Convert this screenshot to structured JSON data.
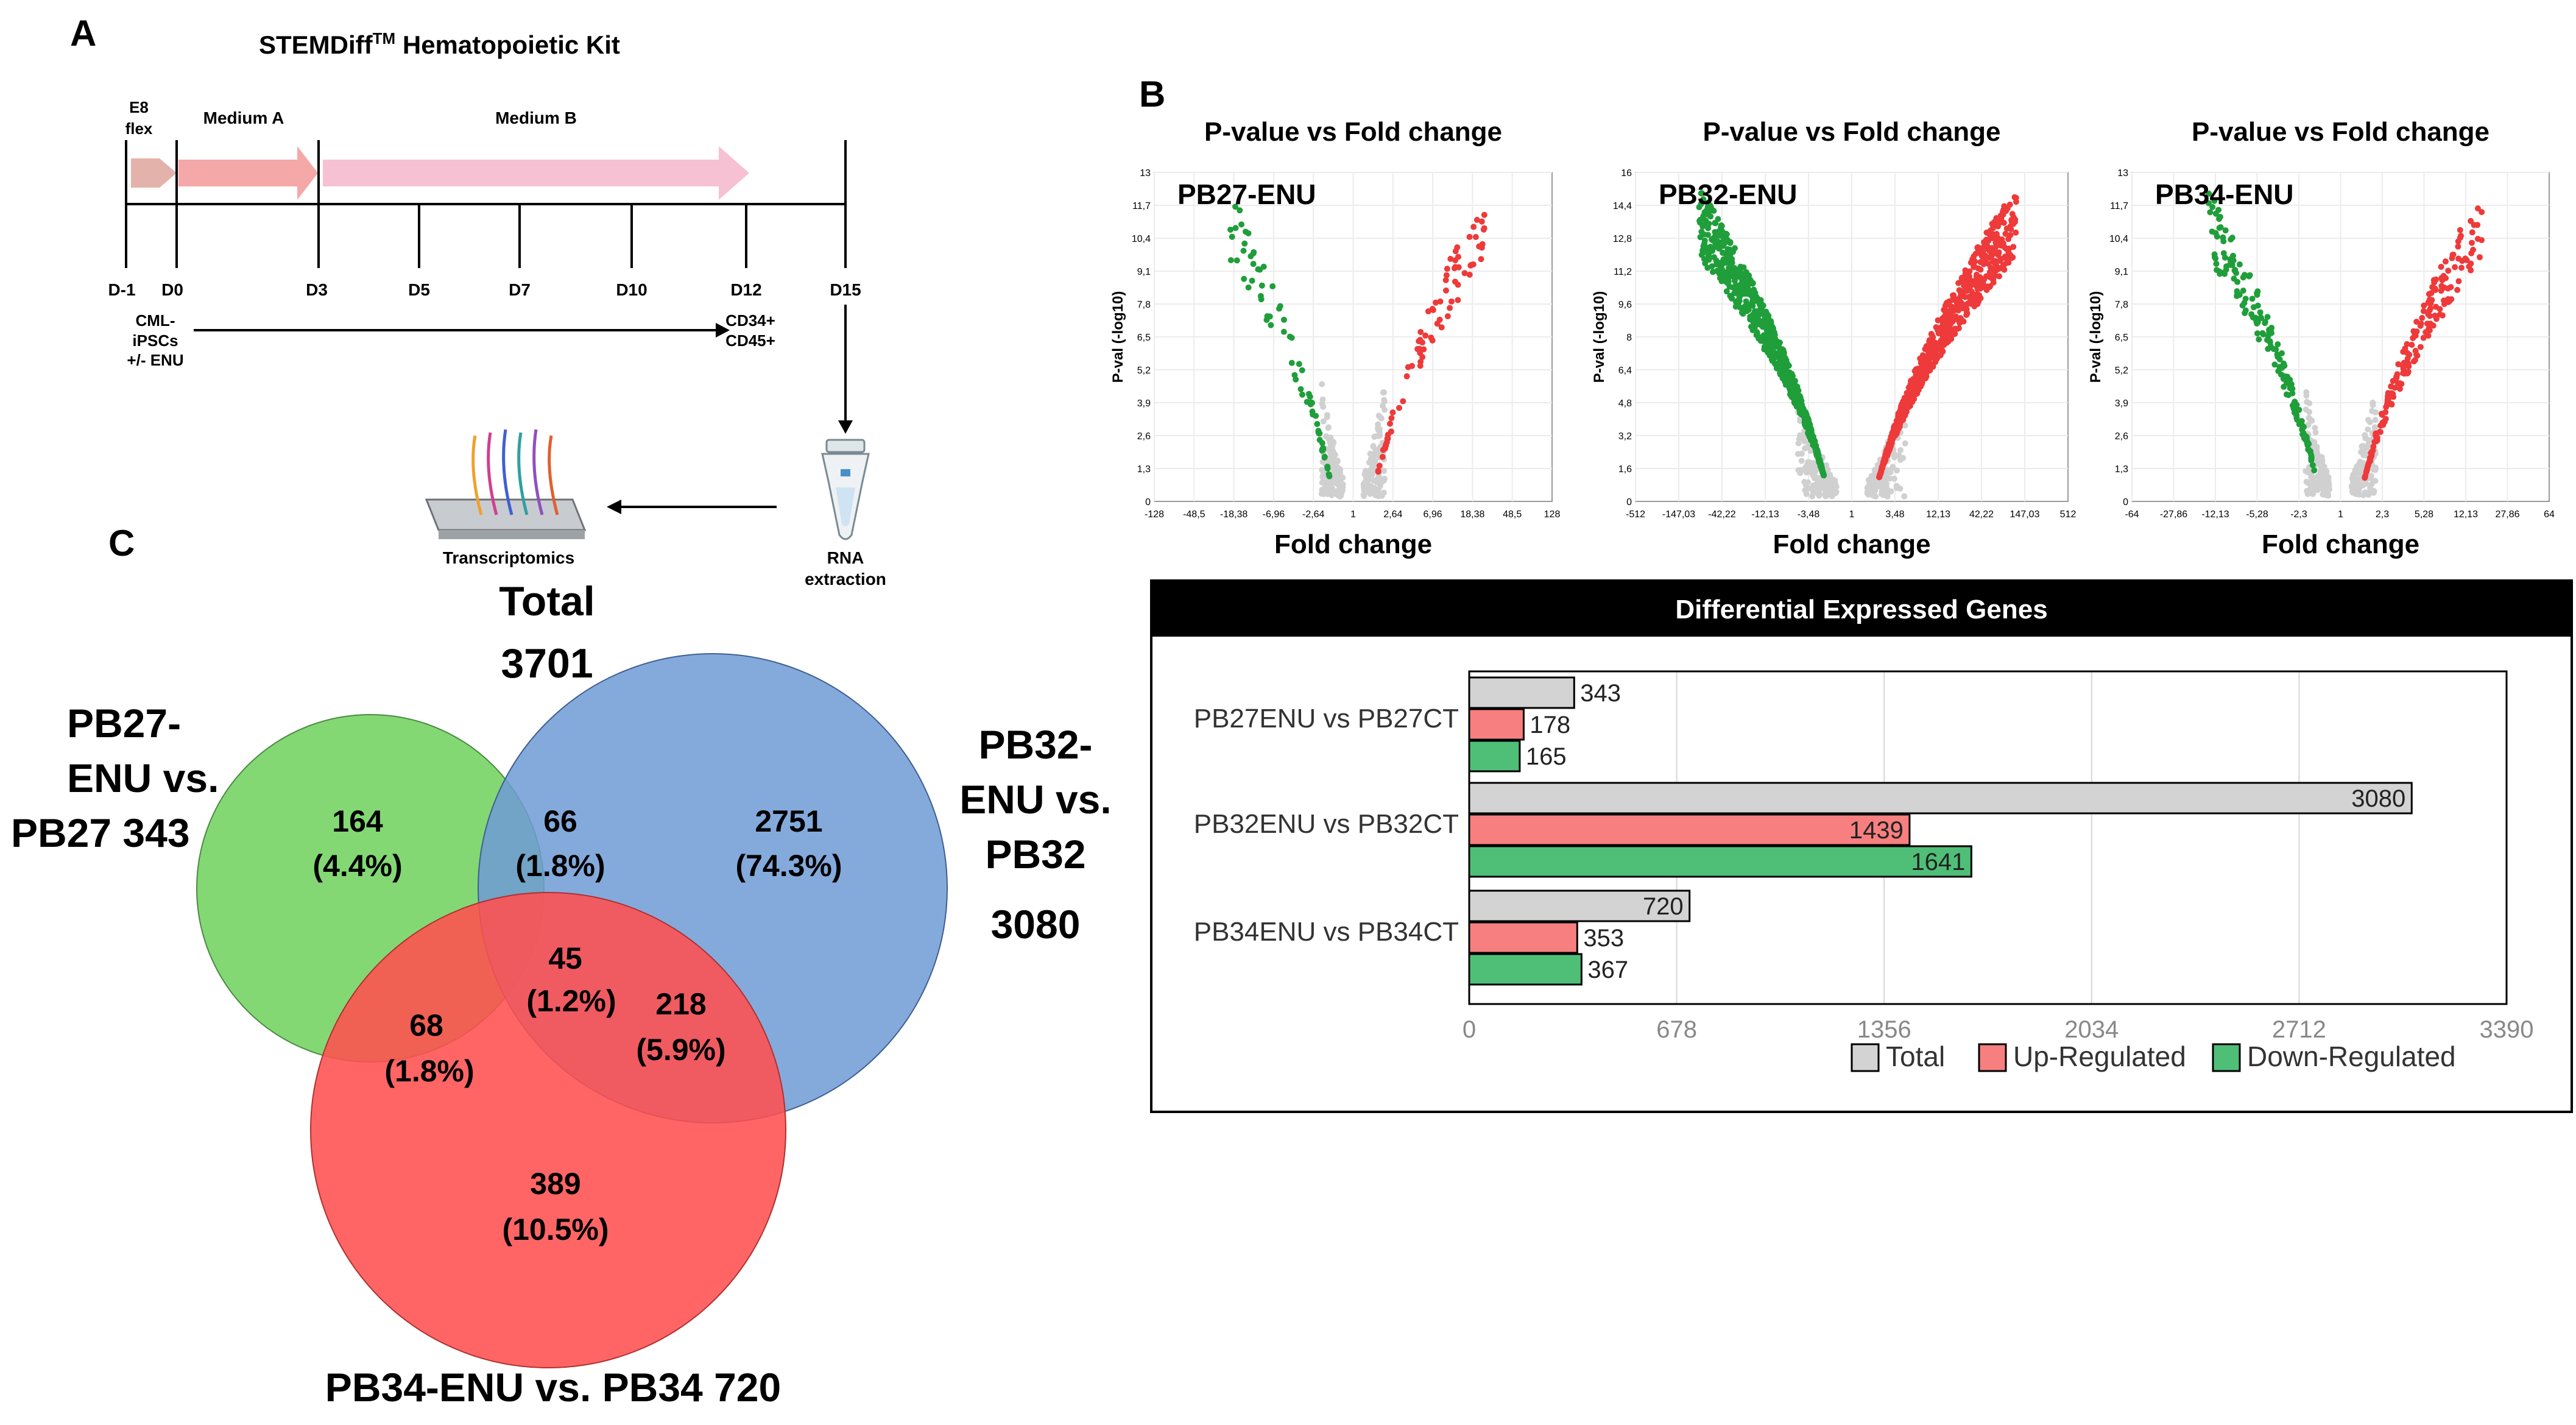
{
  "panel_a": {
    "label": "A",
    "title": "STEMDiff",
    "title_sup": "TM",
    "title_rest": " Hematopoietic Kit",
    "phases": [
      "E8",
      "flex",
      "Medium A",
      "Medium B"
    ],
    "days": [
      "D-1",
      "D0",
      "D3",
      "D5",
      "D7",
      "D10",
      "D12",
      "D15"
    ],
    "start_text": [
      "CML-",
      "iPSCs",
      "+/- ENU"
    ],
    "end_text": [
      "CD34+",
      "CD45+"
    ],
    "rna_text": [
      "RNA",
      "extraction"
    ],
    "transcriptomics": "Transcriptomics"
  },
  "panel_b": {
    "label": "B",
    "volcano": [
      {
        "title": "P-value vs Fold change",
        "sample": "PB27-ENU",
        "ylabel": "P-val (-log10)",
        "xlabel": "Fold change",
        "yticks": [
          "13",
          "11,7",
          "10,4",
          "9,1",
          "7,8",
          "6,5",
          "5,2",
          "3,9",
          "2,6",
          "1,3",
          "0"
        ],
        "xticks": [
          "-128",
          "-48,5",
          "-18,38",
          "-6,96",
          "-2,64",
          "1",
          "2,64",
          "6,96",
          "18,38",
          "48,5",
          "128"
        ]
      },
      {
        "title": "P-value vs Fold change",
        "sample": "PB32-ENU",
        "ylabel": "P-val (-log10)",
        "xlabel": "Fold change",
        "yticks": [
          "16",
          "14,4",
          "12,8",
          "11,2",
          "9,6",
          "8",
          "6,4",
          "4,8",
          "3,2",
          "1,6",
          "0"
        ],
        "xticks": [
          "-512",
          "-147,03",
          "-42,22",
          "-12,13",
          "-3,48",
          "1",
          "3,48",
          "12,13",
          "42,22",
          "147,03",
          "512"
        ]
      },
      {
        "title": "P-value vs Fold change",
        "sample": "PB34-ENU",
        "ylabel": "P-val (-log10)",
        "xlabel": "Fold change",
        "yticks": [
          "13",
          "11,7",
          "10,4",
          "9,1",
          "7,8",
          "6,5",
          "5,2",
          "3,9",
          "2,6",
          "1,3",
          "0"
        ],
        "xticks": [
          "-64",
          "-27,86",
          "-12,13",
          "-5,28",
          "-2,3",
          "1",
          "2,3",
          "5,28",
          "12,13",
          "27,86",
          "64"
        ]
      }
    ],
    "chart_data": {
      "type": "bar",
      "title": "Differential Expressed Genes",
      "categories": [
        "PB27ENU vs PB27CT",
        "PB32ENU vs PB32CT",
        "PB34ENU vs PB34CT"
      ],
      "series": [
        {
          "name": "Total",
          "values": [
            343,
            3080,
            720
          ],
          "color": "#d3d3d3"
        },
        {
          "name": "Up-Regulated",
          "values": [
            178,
            1439,
            353
          ],
          "color": "#f77f7f"
        },
        {
          "name": "Down-Regulated",
          "values": [
            165,
            1641,
            367
          ],
          "color": "#4fbf78"
        }
      ],
      "xlim": [
        0,
        3390
      ],
      "xticks": [
        0,
        678,
        1356,
        2034,
        2712,
        3390
      ],
      "orientation": "horizontal",
      "legend": "bottom-right"
    }
  },
  "panel_c": {
    "label": "C",
    "total": [
      "Total",
      "3701"
    ],
    "set_labels": {
      "pb27": [
        "PB27-",
        "ENU vs.",
        "PB27 343"
      ],
      "pb32": [
        "PB32-",
        "ENU vs.",
        "PB32",
        "3080"
      ],
      "pb34": [
        "PB34-ENU vs. PB34 720"
      ]
    },
    "regions": [
      {
        "name": "pb27-only",
        "count": "164",
        "pct": "(4.4%)"
      },
      {
        "name": "pb27-pb32",
        "count": "66",
        "pct": "(1.8%)"
      },
      {
        "name": "pb32-only",
        "count": "2751",
        "pct": "(74.3%)"
      },
      {
        "name": "all-three",
        "count": "45",
        "pct": "(1.2%)"
      },
      {
        "name": "pb27-pb34",
        "count": "68",
        "pct": "(1.8%)"
      },
      {
        "name": "pb32-pb34",
        "count": "218",
        "pct": "(5.9%)"
      },
      {
        "name": "pb34-only",
        "count": "389",
        "pct": "(10.5%)"
      }
    ],
    "colors": {
      "green": "#6dd15c",
      "blue": "#6f9bd6",
      "red": "#ff5050"
    }
  }
}
